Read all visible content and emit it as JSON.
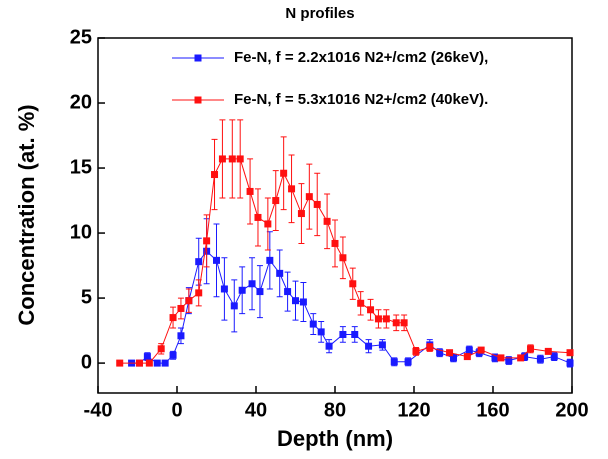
{
  "chart_data": {
    "type": "line",
    "title": "N profiles",
    "x_label": "Depth (nm)",
    "y_label": "Concentration (at. %)",
    "xlim": [
      -40,
      200
    ],
    "xticks": [
      -40,
      0,
      40,
      80,
      120,
      160,
      200
    ],
    "ylim": [
      -2.3,
      25
    ],
    "yticks": [
      0,
      5,
      10,
      15,
      20,
      25
    ],
    "legend": "upper right",
    "series": [
      {
        "name": "Fe-N, f = 2.2x1016 N2+/cm2 (26keV),",
        "color": "#1a1aff",
        "x": [
          -23,
          -19,
          -15,
          -10,
          -6,
          -2,
          2,
          6,
          11,
          15,
          20,
          24,
          29,
          33,
          38,
          42,
          47,
          52,
          56,
          60,
          64,
          69,
          73,
          77,
          84,
          90,
          97,
          104,
          110,
          117,
          128,
          133,
          140,
          148,
          153,
          161,
          168,
          176,
          184,
          191,
          199
        ],
        "values": [
          0,
          0,
          0.5,
          0,
          0,
          0.6,
          2.1,
          4.8,
          7.8,
          8.6,
          7.9,
          5.7,
          4.4,
          5.6,
          6.1,
          5.5,
          7.9,
          6.9,
          5.5,
          4.8,
          4.7,
          3.0,
          2.4,
          1.3,
          2.2,
          2.2,
          1.3,
          1.4,
          0.1,
          0.1,
          1.4,
          0.8,
          0.4,
          1.0,
          0.8,
          0.4,
          0.2,
          0.5,
          0.3,
          0.5,
          0
        ],
        "errors": [
          0.2,
          0.2,
          0.3,
          0.2,
          0.2,
          0.3,
          0.6,
          1.0,
          1.8,
          2.5,
          2.8,
          2.4,
          2.0,
          1.8,
          2.0,
          2.0,
          2.2,
          1.8,
          1.5,
          1.5,
          1.5,
          0.8,
          0.8,
          0.5,
          0.6,
          0.6,
          0.5,
          0.4,
          0.3,
          0.3,
          0.4,
          0.3,
          0.3,
          0.3,
          0.3,
          0.3,
          0.3,
          0.3,
          0.3,
          0.3,
          0.3
        ]
      },
      {
        "name": "Fe-N, f = 5.3x1016 N2+/cm2 (40keV).",
        "color": "#ff1010",
        "x": [
          -29,
          -19,
          -14,
          -8,
          -2,
          2,
          6,
          11,
          15,
          19,
          23,
          28,
          32,
          37,
          41,
          46,
          50,
          54,
          58,
          63,
          67,
          71,
          76,
          80,
          84,
          89,
          93,
          98,
          102,
          106,
          111,
          115,
          121,
          128,
          138,
          147,
          154,
          164,
          174,
          179,
          188,
          199
        ],
        "values": [
          0,
          0,
          0,
          1.1,
          3.5,
          4.2,
          4.8,
          5.4,
          9.4,
          14.5,
          15.7,
          15.7,
          15.7,
          13.2,
          11.2,
          10.7,
          12.5,
          14.6,
          13.4,
          11.5,
          12.8,
          12.2,
          10.9,
          9.2,
          8.1,
          6.1,
          4.6,
          4.1,
          3.4,
          3.4,
          3.1,
          3.1,
          0.9,
          1.2,
          0.8,
          0.5,
          1.0,
          0.4,
          0.4,
          1.1,
          0.9,
          0.8
        ],
        "errors": [
          0.2,
          0.2,
          0.2,
          0.4,
          0.8,
          0.8,
          0.9,
          1.0,
          2.0,
          2.7,
          3.0,
          3.0,
          3.0,
          2.5,
          2.2,
          2.0,
          2.3,
          2.8,
          2.6,
          2.3,
          2.5,
          2.4,
          2.1,
          1.8,
          1.6,
          1.2,
          0.9,
          0.8,
          0.7,
          0.7,
          0.6,
          0.6,
          0.3,
          0.3,
          0.2,
          0.2,
          0.2,
          0.2,
          0.2,
          0.3,
          0.2,
          0.2
        ]
      }
    ]
  }
}
